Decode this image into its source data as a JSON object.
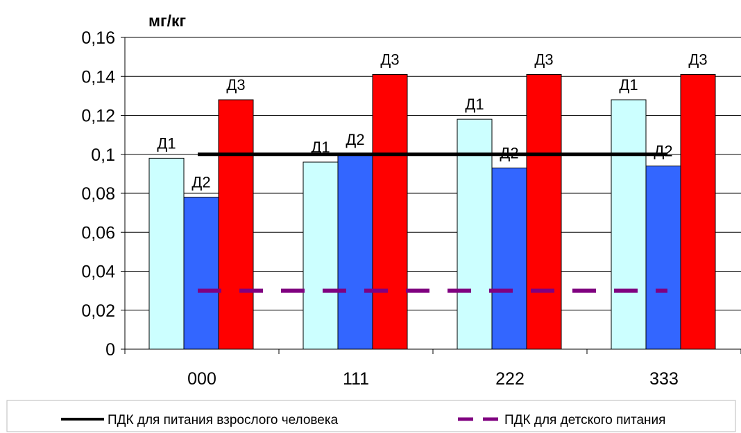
{
  "chart_data": {
    "type": "bar",
    "ylabel": "мг/кг",
    "categories": [
      "000",
      "111",
      "222",
      "333"
    ],
    "ylim": [
      0,
      0.16
    ],
    "yticks": [
      "0",
      "0,02",
      "0,04",
      "0,06",
      "0,08",
      "0,1",
      "0,12",
      "0,14",
      "0,16"
    ],
    "grid": true,
    "series": [
      {
        "name": "Д1",
        "color": "#ccffff",
        "values": [
          0.098,
          0.096,
          0.118,
          0.128
        ],
        "labels": [
          "Д1",
          "Д1",
          "Д1",
          "Д1"
        ]
      },
      {
        "name": "Д2",
        "color": "#3366ff",
        "values": [
          0.078,
          0.1,
          0.093,
          0.094
        ],
        "labels": [
          "Д2",
          "Д2",
          "Д2",
          "Д2"
        ]
      },
      {
        "name": "Д3",
        "color": "#ff0000",
        "values": [
          0.128,
          0.141,
          0.141,
          0.141
        ],
        "labels": [
          "Д3",
          "Д3",
          "Д3",
          "Д3"
        ]
      }
    ],
    "reference_lines": [
      {
        "name": "ПДК для питания взрослого человека",
        "value": 0.1,
        "color": "#000000",
        "style": "solid"
      },
      {
        "name": "ПДК для детского питания",
        "value": 0.03,
        "color": "#800080",
        "style": "dashed"
      }
    ],
    "legend_position": "bottom"
  }
}
